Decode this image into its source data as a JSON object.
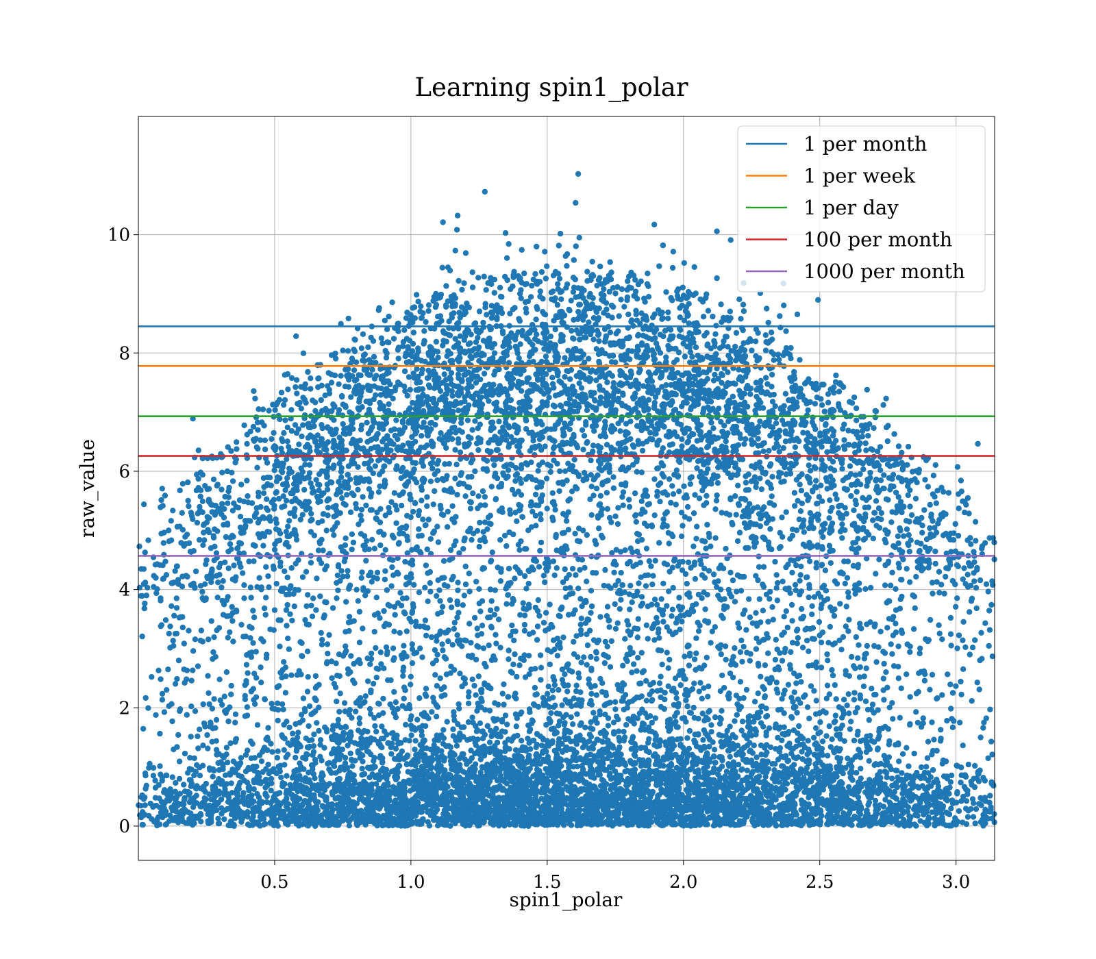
{
  "chart_data": {
    "type": "scatter",
    "title": "Learning spin1_polar",
    "xlabel": "spin1_polar",
    "ylabel": "raw_value",
    "xlim": [
      0.0,
      3.1416
    ],
    "ylim": [
      -0.58,
      12.0
    ],
    "xticks": [
      0.5,
      1.0,
      1.5,
      2.0,
      2.5,
      3.0
    ],
    "xtick_labels": [
      "0.5",
      "1.0",
      "1.5",
      "2.0",
      "2.5",
      "3.0"
    ],
    "yticks": [
      0,
      2,
      4,
      6,
      8,
      10
    ],
    "ytick_labels": [
      "0",
      "2",
      "4",
      "6",
      "8",
      "10"
    ],
    "grid": true,
    "legend_position": "top-right",
    "scatter": {
      "color": "#1f77b4",
      "x_range": [
        0.0,
        3.1416
      ],
      "y_range": [
        0.0,
        11.05
      ]
    },
    "hlines": [
      {
        "name": "1 per month",
        "y": 8.45,
        "color": "#1f77b4"
      },
      {
        "name": "1 per week",
        "y": 7.78,
        "color": "#ff7f0e"
      },
      {
        "name": "1 per day",
        "y": 6.93,
        "color": "#2ca02c"
      },
      {
        "name": "100 per month",
        "y": 6.26,
        "color": "#d62728"
      },
      {
        "name": "1000 per month",
        "y": 4.57,
        "color": "#9467bd"
      }
    ]
  }
}
